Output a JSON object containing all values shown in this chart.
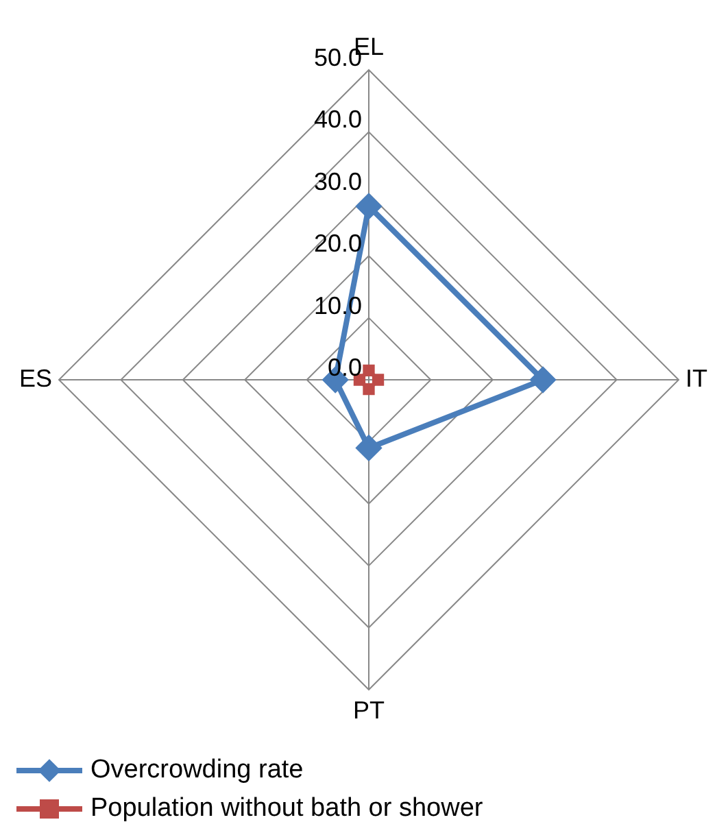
{
  "chart_data": {
    "type": "radar",
    "categories": [
      "EL",
      "IT",
      "PT",
      "ES"
    ],
    "series": [
      {
        "name": "Overcrowding rate",
        "color": "#4a7ebb",
        "values": [
          28.0,
          28.1,
          11.0,
          5.4
        ],
        "marker": "diamond"
      },
      {
        "name": "Population without bath or shower",
        "color": "#be4b48",
        "values": [
          1.5,
          1.5,
          1.5,
          1.5
        ],
        "marker": "square"
      }
    ],
    "ylim": [
      0,
      50
    ],
    "yticks": [
      {
        "value": 0,
        "label": "0.0"
      },
      {
        "value": 10,
        "label": "10.0"
      },
      {
        "value": 20,
        "label": "20.0"
      },
      {
        "value": 30,
        "label": "30.0"
      },
      {
        "value": 40,
        "label": "40.0"
      },
      {
        "value": 50,
        "label": "50.0"
      }
    ],
    "grid": true,
    "legend": "bottom left"
  }
}
